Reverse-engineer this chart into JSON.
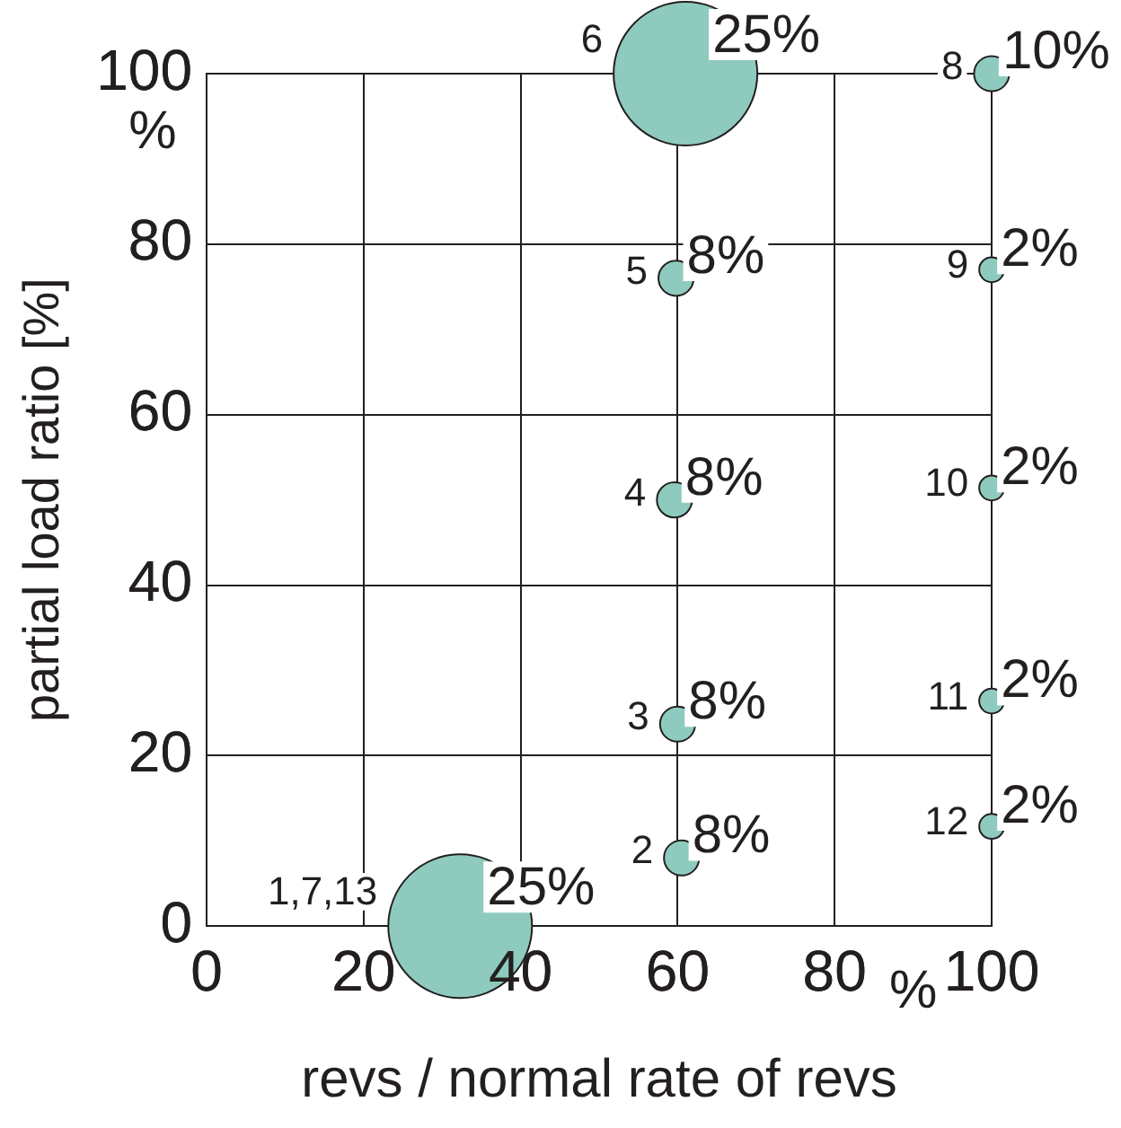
{
  "chart_data": {
    "type": "bubble",
    "xlabel": "revs / normal rate of revs",
    "ylabel": "partial load ratio [%]",
    "x": [
      32.3,
      60.5,
      60,
      59.6,
      59.8,
      61,
      100,
      100,
      100,
      100,
      100
    ],
    "values": [
      0,
      8,
      23.7,
      50,
      76,
      100,
      100,
      77,
      51.4,
      26.4,
      11.7
    ],
    "sizes": [
      1,
      0.06,
      0.06,
      0.06,
      0.06,
      1,
      0.06,
      0.03,
      0.03,
      0.03,
      0.03
    ],
    "color": "#8ecbbe",
    "xlim": [
      0,
      100
    ],
    "xticks": [
      0,
      20,
      40,
      60,
      80,
      100
    ],
    "ylim": [
      0,
      100
    ],
    "yticks": [
      0,
      20,
      40,
      60,
      80,
      100
    ],
    "grid": true,
    "legend": false,
    "annotations": [
      {
        "text": "1,7,13",
        "x": 32.3,
        "y": 0
      },
      {
        "text": "25%",
        "x": 32.3,
        "y": 0
      },
      {
        "text": "2",
        "x": 60.5,
        "y": 8
      },
      {
        "text": "8%",
        "x": 60.5,
        "y": 8
      },
      {
        "text": "3",
        "x": 60,
        "y": 23.7
      },
      {
        "text": "8%",
        "x": 60,
        "y": 23.7
      },
      {
        "text": "4",
        "x": 59.6,
        "y": 50
      },
      {
        "text": "8%",
        "x": 59.6,
        "y": 50
      },
      {
        "text": "5",
        "x": 59.8,
        "y": 76
      },
      {
        "text": "8%",
        "x": 59.8,
        "y": 76
      },
      {
        "text": "6",
        "x": 61,
        "y": 100
      },
      {
        "text": "25%",
        "x": 61,
        "y": 100
      },
      {
        "text": "8",
        "x": 100,
        "y": 100
      },
      {
        "text": "10%",
        "x": 100,
        "y": 100
      },
      {
        "text": "9",
        "x": 100,
        "y": 77
      },
      {
        "text": "2%",
        "x": 100,
        "y": 77
      },
      {
        "text": "10",
        "x": 100,
        "y": 51.4
      },
      {
        "text": "2%",
        "x": 100,
        "y": 51.4
      },
      {
        "text": "11",
        "x": 100,
        "y": 26.4
      },
      {
        "text": "2%",
        "x": 100,
        "y": 26.4
      },
      {
        "text": "12",
        "x": 100,
        "y": 11.7
      },
      {
        "text": "2%",
        "x": 100,
        "y": 11.7
      },
      "%",
      "%"
    ]
  }
}
